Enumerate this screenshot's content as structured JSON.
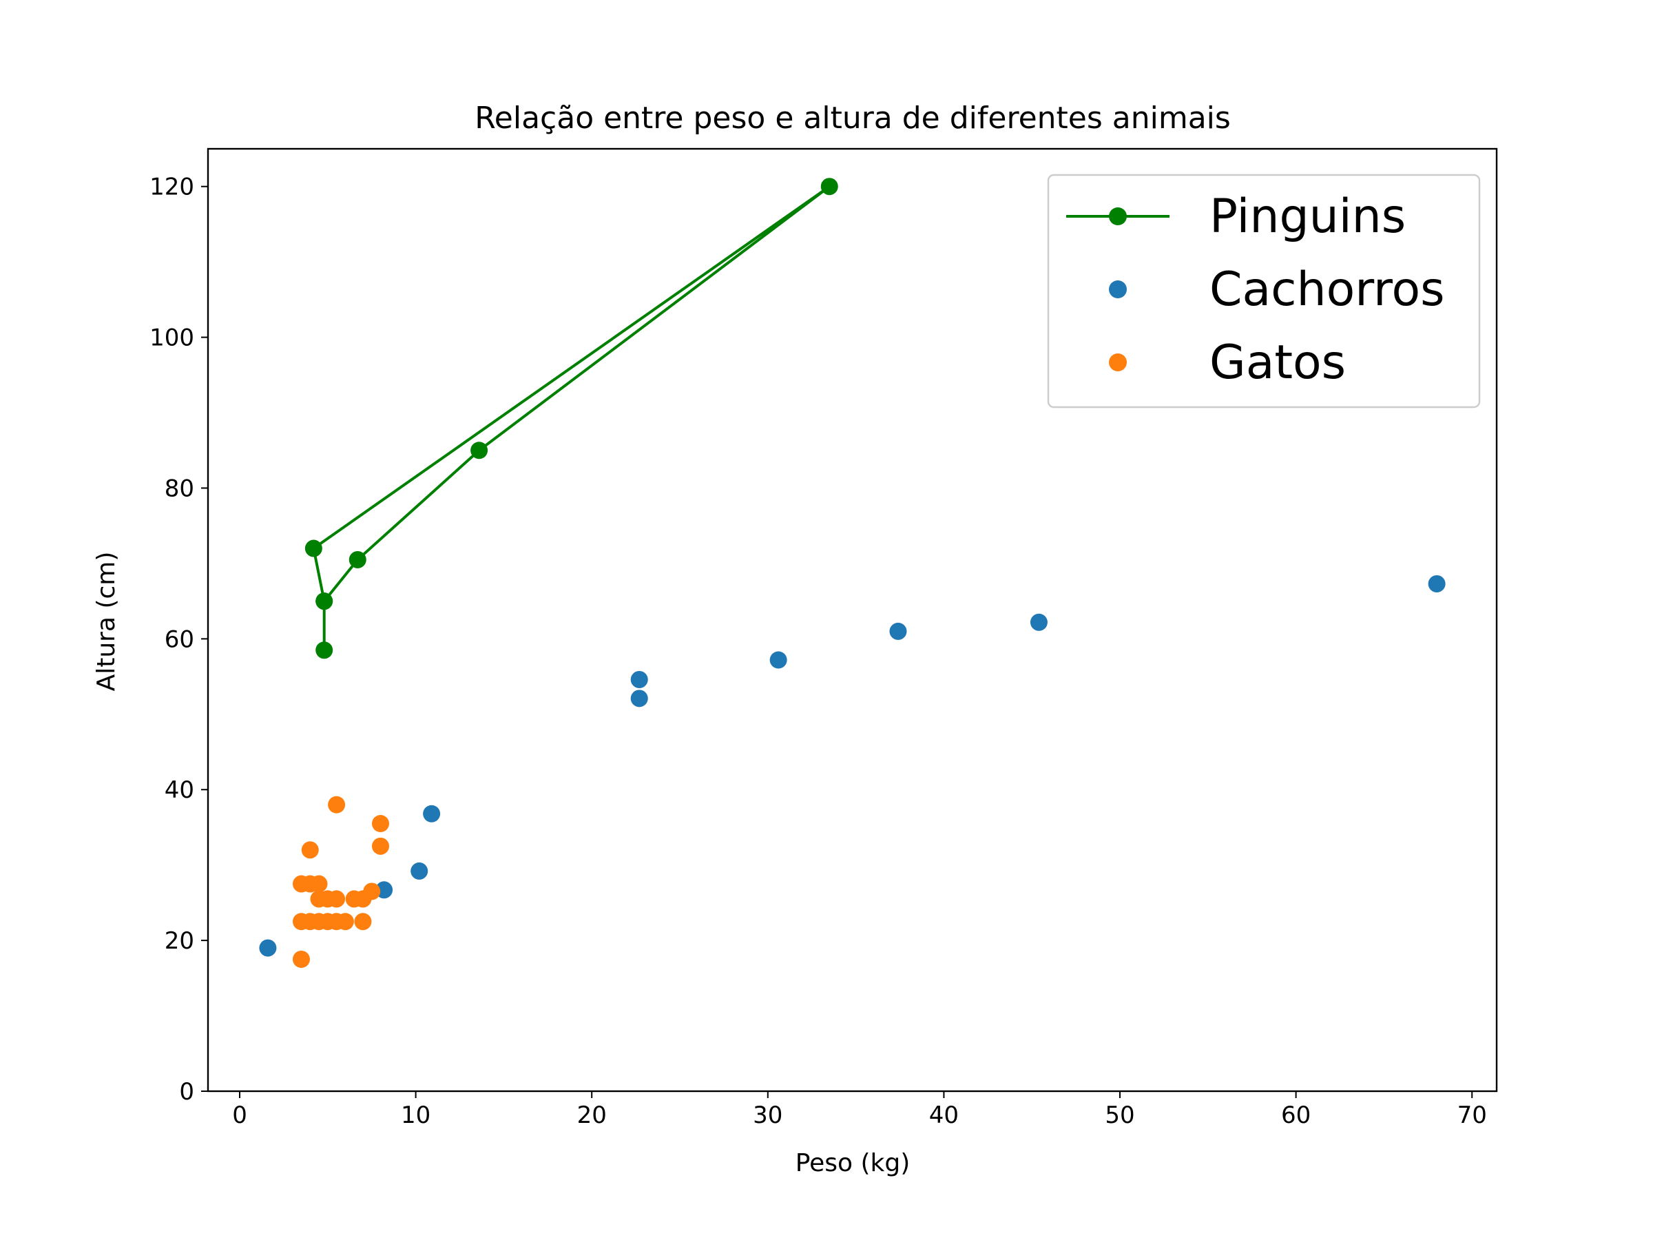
{
  "chart_data": {
    "type": "scatter",
    "title": "Relação entre peso e altura de diferentes animais",
    "xlabel": "Peso (kg)",
    "ylabel": "Altura (cm)",
    "xlim": [
      -1.8,
      71.4
    ],
    "ylim": [
      0,
      125
    ],
    "xticks": [
      0,
      10,
      20,
      30,
      40,
      50,
      60,
      70
    ],
    "yticks": [
      0,
      20,
      40,
      60,
      80,
      100,
      120
    ],
    "grid": false,
    "legend_position": "top-right",
    "series": [
      {
        "name": "Pinguins",
        "style": "line-marker",
        "color": "#008000",
        "x": [
          4.8,
          4.8,
          4.2,
          33.5,
          13.6,
          6.7,
          4.8
        ],
        "y": [
          58.5,
          65.0,
          72.0,
          120.0,
          85.0,
          70.5,
          65.0
        ]
      },
      {
        "name": "Cachorros",
        "style": "marker",
        "color": "#1f77b4",
        "x": [
          1.6,
          8.2,
          10.2,
          10.9,
          22.7,
          22.7,
          30.6,
          37.4,
          45.4,
          68.0
        ],
        "y": [
          19.0,
          26.7,
          29.2,
          36.8,
          52.1,
          54.6,
          57.2,
          61.0,
          62.2,
          67.3
        ]
      },
      {
        "name": "Gatos",
        "style": "marker",
        "color": "#ff7f0e",
        "x": [
          3.5,
          3.5,
          3.5,
          4.0,
          4.0,
          4.0,
          4.5,
          4.5,
          4.5,
          5.0,
          5.0,
          5.5,
          5.5,
          5.5,
          6.0,
          6.5,
          7.0,
          7.0,
          7.5,
          8.0,
          8.0
        ],
        "y": [
          17.5,
          22.5,
          27.5,
          22.5,
          27.5,
          32.0,
          22.5,
          25.5,
          27.5,
          22.5,
          25.5,
          22.5,
          25.5,
          38.0,
          22.5,
          25.5,
          22.5,
          25.5,
          26.5,
          32.5,
          35.5
        ]
      }
    ]
  }
}
